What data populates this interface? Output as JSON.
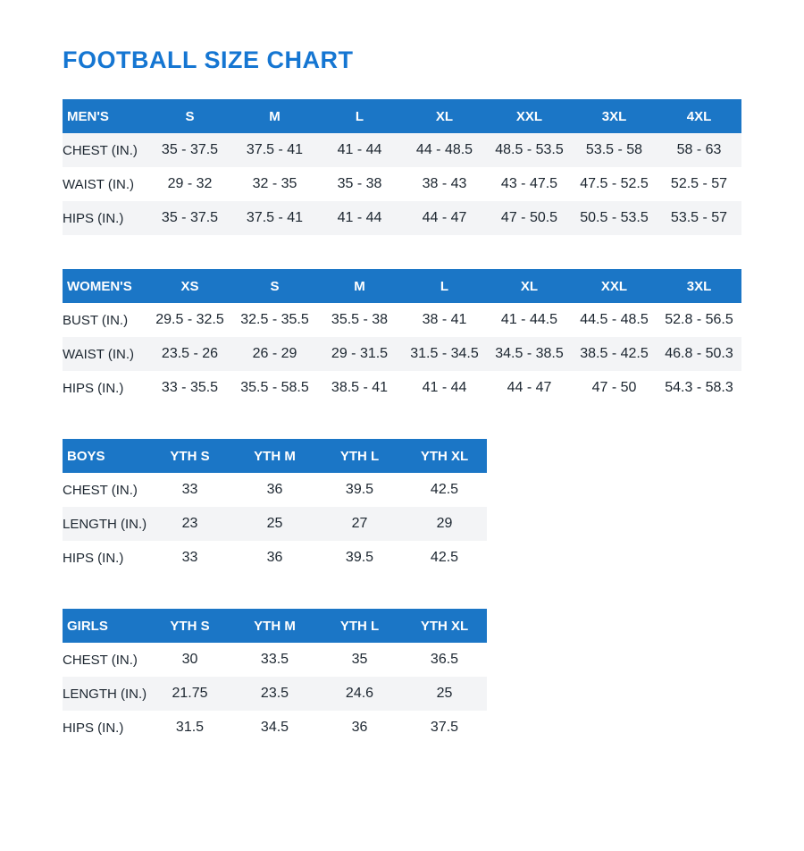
{
  "title": "FOOTBALL SIZE CHART",
  "colors": {
    "accent_blue": "#1576d2",
    "header_blue": "#1b76c6",
    "stripe_gray": "#f3f4f6",
    "text_dark": "#1c2630"
  },
  "tables": [
    {
      "name": "MEN'S",
      "columns": [
        "S",
        "M",
        "L",
        "XL",
        "XXL",
        "3XL",
        "4XL"
      ],
      "rows": [
        {
          "label": "CHEST (IN.)",
          "values": [
            "35 - 37.5",
            "37.5 - 41",
            "41 - 44",
            "44 - 48.5",
            "48.5 - 53.5",
            "53.5 - 58",
            "58 - 63"
          ]
        },
        {
          "label": "WAIST (IN.)",
          "values": [
            "29 - 32",
            "32 - 35",
            "35 - 38",
            "38 - 43",
            "43 - 47.5",
            "47.5 - 52.5",
            "52.5 - 57"
          ]
        },
        {
          "label": "HIPS (IN.)",
          "values": [
            "35 - 37.5",
            "37.5 - 41",
            "41 - 44",
            "44 - 47",
            "47 - 50.5",
            "50.5 - 53.5",
            "53.5 - 57"
          ]
        }
      ],
      "striped_rows": [
        0,
        2
      ]
    },
    {
      "name": "WOMEN'S",
      "columns": [
        "XS",
        "S",
        "M",
        "L",
        "XL",
        "XXL",
        "3XL"
      ],
      "rows": [
        {
          "label": "BUST (IN.)",
          "values": [
            "29.5 - 32.5",
            "32.5 - 35.5",
            "35.5 - 38",
            "38 - 41",
            "41 - 44.5",
            "44.5 - 48.5",
            "52.8 - 56.5"
          ]
        },
        {
          "label": "WAIST (IN.)",
          "values": [
            "23.5 - 26",
            "26 - 29",
            "29 - 31.5",
            "31.5 - 34.5",
            "34.5 - 38.5",
            "38.5 - 42.5",
            "46.8 - 50.3"
          ]
        },
        {
          "label": "HIPS (IN.)",
          "values": [
            "33 - 35.5",
            "35.5 - 58.5",
            "38.5 - 41",
            "41 - 44",
            "44 - 47",
            "47 - 50",
            "54.3 - 58.3"
          ]
        }
      ],
      "striped_rows": [
        1
      ]
    },
    {
      "name": "BOYS",
      "columns": [
        "YTH S",
        "YTH M",
        "YTH L",
        "YTH XL"
      ],
      "rows": [
        {
          "label": "CHEST (IN.)",
          "values": [
            "33",
            "36",
            "39.5",
            "42.5"
          ]
        },
        {
          "label": "LENGTH (IN.)",
          "values": [
            "23",
            "25",
            "27",
            "29"
          ]
        },
        {
          "label": "HIPS (IN.)",
          "values": [
            "33",
            "36",
            "39.5",
            "42.5"
          ]
        }
      ],
      "striped_rows": [
        1
      ]
    },
    {
      "name": "GIRLS",
      "columns": [
        "YTH S",
        "YTH M",
        "YTH L",
        "YTH XL"
      ],
      "rows": [
        {
          "label": "CHEST (IN.)",
          "values": [
            "30",
            "33.5",
            "35",
            "36.5"
          ]
        },
        {
          "label": "LENGTH (IN.)",
          "values": [
            "21.75",
            "23.5",
            "24.6",
            "25"
          ]
        },
        {
          "label": "HIPS (IN.)",
          "values": [
            "31.5",
            "34.5",
            "36",
            "37.5"
          ]
        }
      ],
      "striped_rows": [
        1
      ]
    }
  ]
}
